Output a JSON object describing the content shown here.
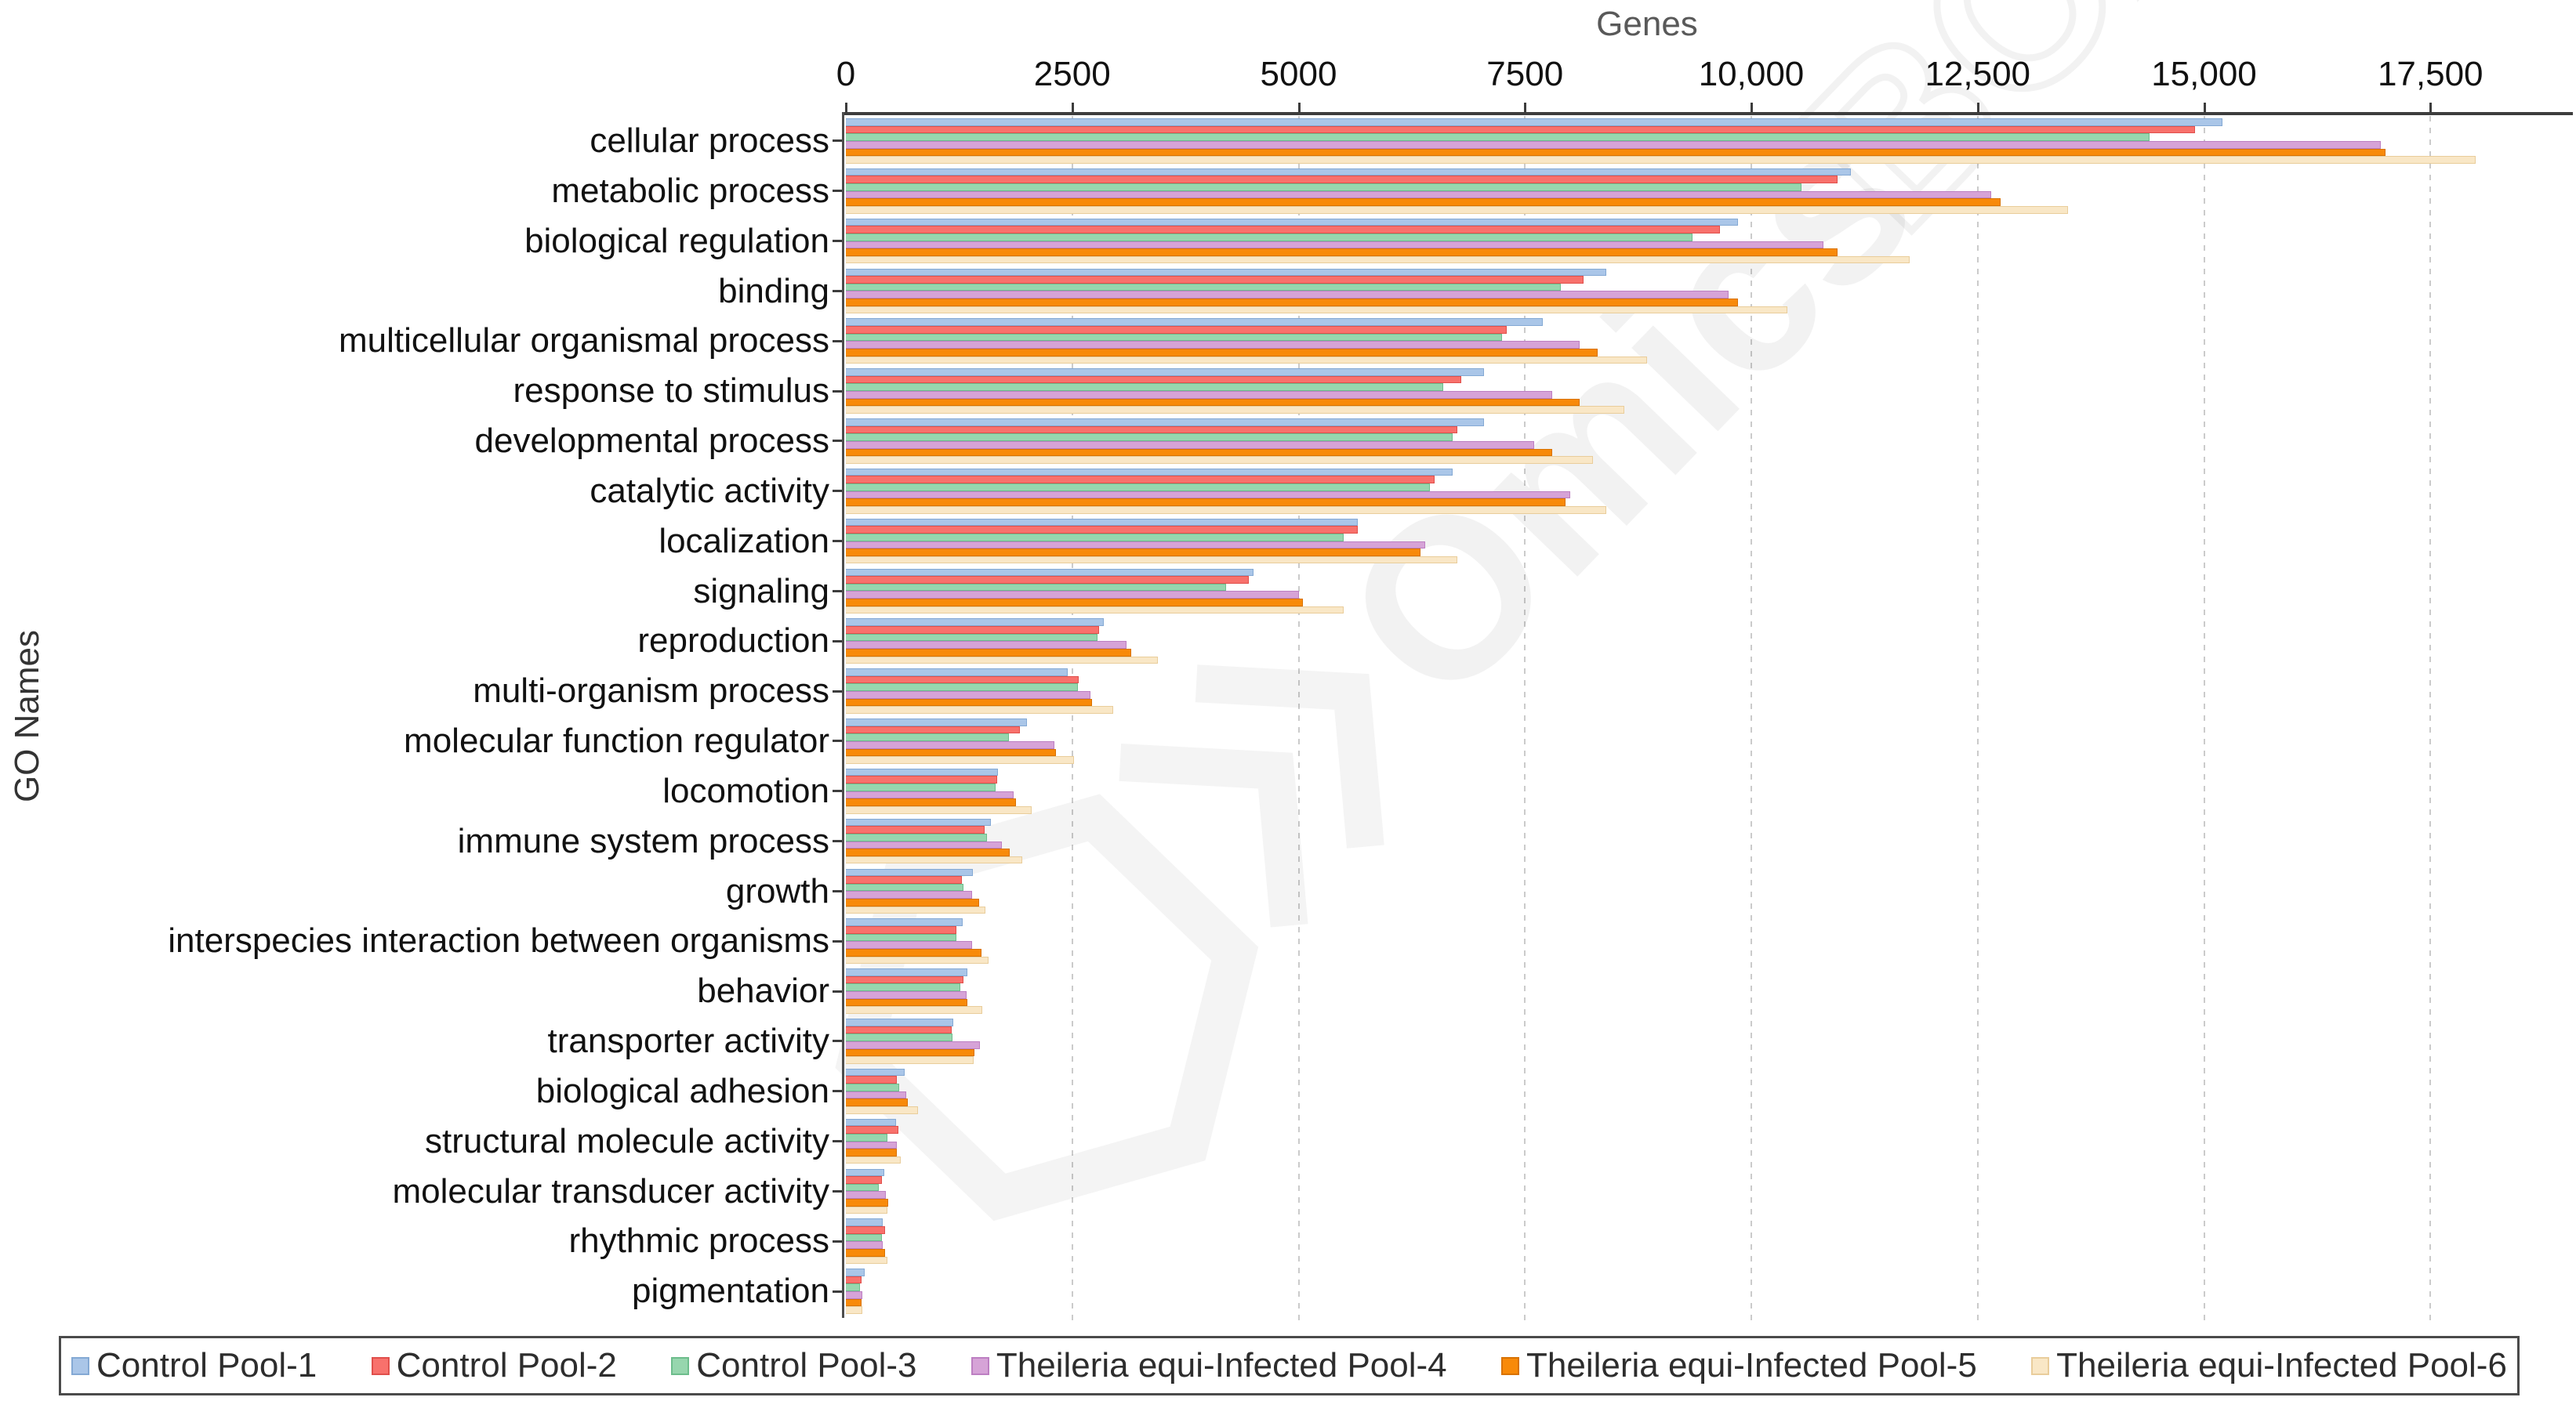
{
  "chart_data": {
    "type": "bar",
    "orientation": "horizontal",
    "title": "",
    "xlabel": "Genes",
    "ylabel": "GO Names",
    "xlim": [
      0,
      19050
    ],
    "grid": "vertical-dashed",
    "legend_position": "bottom",
    "x_ticks": [
      {
        "value": 0,
        "label": "0"
      },
      {
        "value": 2500,
        "label": "2500"
      },
      {
        "value": 5000,
        "label": "5000"
      },
      {
        "value": 7500,
        "label": "7500"
      },
      {
        "value": 10000,
        "label": "10,000"
      },
      {
        "value": 12500,
        "label": "12,500"
      },
      {
        "value": 15000,
        "label": "15,000"
      },
      {
        "value": 17500,
        "label": "17,500"
      }
    ],
    "categories": [
      "cellular process",
      "metabolic process",
      "biological regulation",
      "binding",
      "multicellular organismal process",
      "response to stimulus",
      "developmental process",
      "catalytic activity",
      "localization",
      "signaling",
      "reproduction",
      "multi-organism process",
      "molecular function regulator",
      "locomotion",
      "immune system process",
      "growth",
      "interspecies interaction between organisms",
      "behavior",
      "transporter activity",
      "biological adhesion",
      "structural molecule activity",
      "molecular transducer activity",
      "rhythmic process",
      "pigmentation"
    ],
    "series": [
      {
        "name": "Control Pool-1",
        "color": "#aac6e8",
        "border_color": "#84a9d4",
        "values": [
          15200,
          11100,
          9850,
          8400,
          7700,
          7050,
          7050,
          6700,
          5650,
          4500,
          2850,
          2450,
          2000,
          1680,
          1600,
          1400,
          1290,
          1340,
          1190,
          650,
          555,
          420,
          410,
          210
        ]
      },
      {
        "name": "Control Pool-2",
        "color": "#f8716c",
        "border_color": "#e04f4b",
        "values": [
          14900,
          10950,
          9650,
          8150,
          7300,
          6800,
          6750,
          6500,
          5650,
          4450,
          2800,
          2570,
          1925,
          1670,
          1530,
          1280,
          1220,
          1300,
          1170,
          560,
          580,
          400,
          435,
          170
        ]
      },
      {
        "name": "Control Pool-3",
        "color": "#97d6ae",
        "border_color": "#6dbd8c",
        "values": [
          14400,
          10550,
          9350,
          7900,
          7250,
          6600,
          6700,
          6450,
          5500,
          4200,
          2780,
          2560,
          1800,
          1650,
          1560,
          1300,
          1220,
          1260,
          1180,
          590,
          460,
          365,
          400,
          160
        ]
      },
      {
        "name": "Theileria equi-Infected Pool-4",
        "color": "#d6a3d7",
        "border_color": "#bd7fc2",
        "values": [
          16950,
          12650,
          10800,
          9750,
          8100,
          7800,
          7600,
          8000,
          6400,
          5000,
          3100,
          2700,
          2300,
          1850,
          1720,
          1390,
          1390,
          1330,
          1480,
          670,
          565,
          440,
          410,
          185
        ]
      },
      {
        "name": "Theileria equi-Infected Pool-5",
        "color": "#f88a09",
        "border_color": "#d87200",
        "values": [
          17000,
          12750,
          10950,
          9850,
          8300,
          8100,
          7800,
          7950,
          6350,
          5050,
          3150,
          2720,
          2320,
          1880,
          1810,
          1470,
          1500,
          1340,
          1420,
          680,
          565,
          470,
          430,
          175
        ]
      },
      {
        "name": "Theileria equi-Infected Pool-6",
        "color": "#f9e7c6",
        "border_color": "#e9cd9b",
        "values": [
          18000,
          13500,
          11750,
          10400,
          8850,
          8600,
          8250,
          8400,
          6750,
          5500,
          3450,
          2950,
          2520,
          2050,
          1950,
          1540,
          1580,
          1510,
          1415,
          800,
          610,
          460,
          460,
          185
        ]
      }
    ],
    "watermark": {
      "solid": "Omics",
      "outline": "BOX"
    }
  }
}
